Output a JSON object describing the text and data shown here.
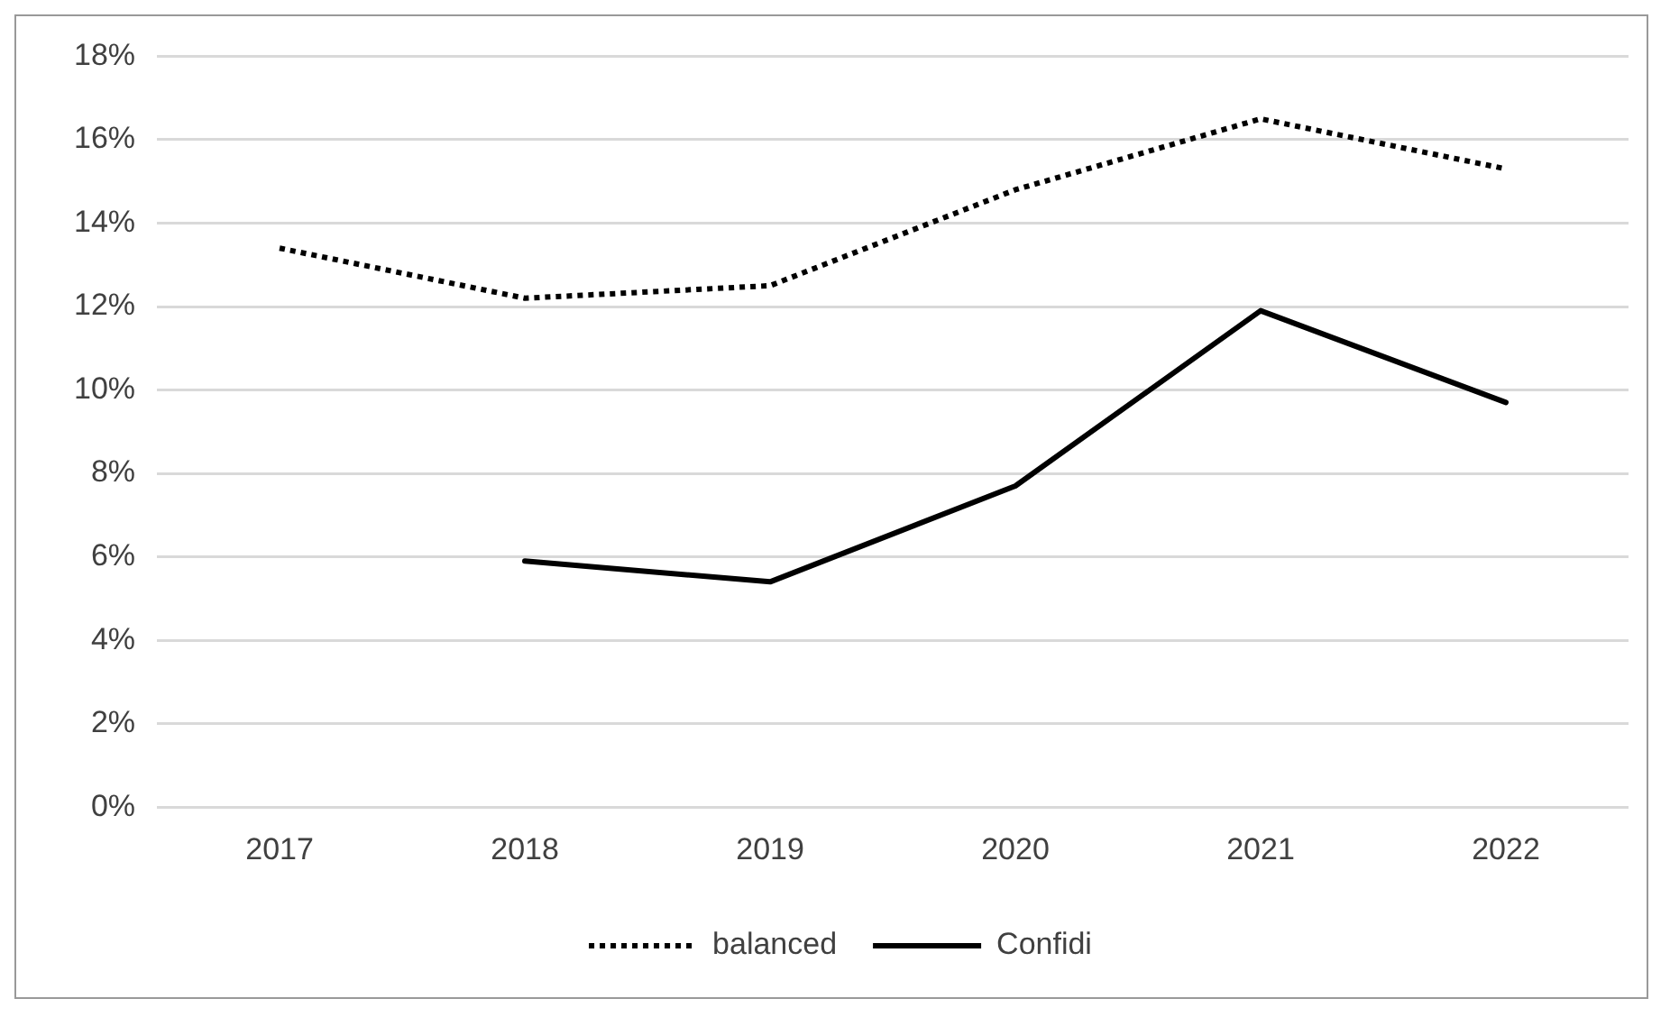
{
  "chart_data": {
    "type": "line",
    "categories": [
      "2017",
      "2018",
      "2019",
      "2020",
      "2021",
      "2022"
    ],
    "series": [
      {
        "name": "balanced",
        "color": "#000000",
        "line_style": "dotted",
        "values": [
          13.4,
          12.2,
          12.5,
          14.8,
          16.5,
          15.3
        ]
      },
      {
        "name": "Confidi",
        "color": "#000000",
        "line_style": "solid",
        "values": [
          null,
          5.9,
          5.4,
          7.7,
          11.9,
          9.7
        ]
      }
    ],
    "ylim": [
      0,
      18
    ],
    "yticks": [
      {
        "value": 0,
        "label": "0%"
      },
      {
        "value": 2,
        "label": "2%"
      },
      {
        "value": 4,
        "label": "4%"
      },
      {
        "value": 6,
        "label": "6%"
      },
      {
        "value": 8,
        "label": "8%"
      },
      {
        "value": 10,
        "label": "10%"
      },
      {
        "value": 12,
        "label": "12%"
      },
      {
        "value": 14,
        "label": "14%"
      },
      {
        "value": 16,
        "label": "16%"
      },
      {
        "value": 18,
        "label": "18%"
      }
    ],
    "grid": "y",
    "legend": "bottom",
    "marker": "none"
  }
}
